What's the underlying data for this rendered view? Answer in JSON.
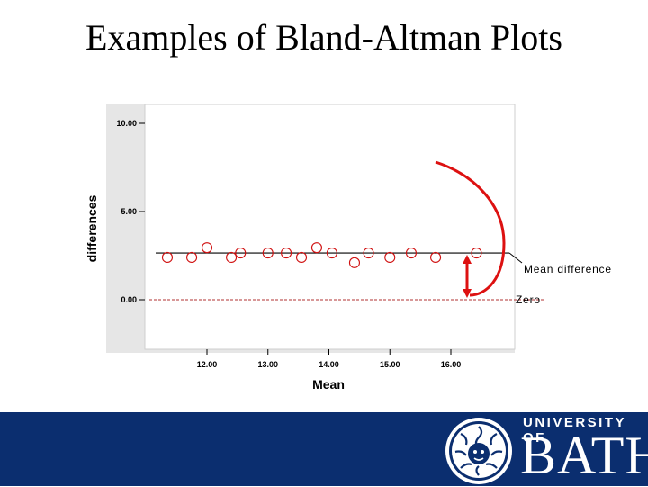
{
  "slide": {
    "title": "Examples of Bland-Altman Plots"
  },
  "chart_data": {
    "type": "scatter",
    "title": "",
    "xlabel": "Mean",
    "ylabel": "differences",
    "xlim": [
      11.2,
      17.0
    ],
    "ylim": [
      -3.0,
      10.5
    ],
    "x_ticks": [
      12.0,
      13.0,
      14.0,
      15.0,
      16.0
    ],
    "x_tick_labels": [
      "12.00",
      "13.00",
      "14.00",
      "15.00",
      "16.00"
    ],
    "y_ticks": [
      0.0,
      5.0,
      10.0
    ],
    "y_tick_labels": [
      "0.00",
      "5.00",
      "10.00"
    ],
    "grid": false,
    "points": [
      {
        "x": 11.35,
        "y": 2.4
      },
      {
        "x": 11.75,
        "y": 2.4
      },
      {
        "x": 12.0,
        "y": 2.95
      },
      {
        "x": 12.4,
        "y": 2.4
      },
      {
        "x": 12.55,
        "y": 2.65
      },
      {
        "x": 13.0,
        "y": 2.65
      },
      {
        "x": 13.3,
        "y": 2.65
      },
      {
        "x": 13.55,
        "y": 2.4
      },
      {
        "x": 13.8,
        "y": 2.95
      },
      {
        "x": 14.05,
        "y": 2.65
      },
      {
        "x": 14.42,
        "y": 2.1
      },
      {
        "x": 14.65,
        "y": 2.65
      },
      {
        "x": 15.0,
        "y": 2.4
      },
      {
        "x": 15.35,
        "y": 2.65
      },
      {
        "x": 15.75,
        "y": 2.4
      },
      {
        "x": 16.42,
        "y": 2.65
      }
    ],
    "mean_difference": 2.65,
    "zero_line": 0.0,
    "annotations": {
      "mean_label": "Mean difference",
      "zero_label": "Zero"
    },
    "colors": {
      "points": "#d01010",
      "arrow": "#dd1111",
      "mean_line": "#000000",
      "zero_line": "#b03030"
    }
  },
  "logo": {
    "university": "UNIVERSITY OF",
    "name": "BATH",
    "emblem_icon": "sun-face-emblem"
  },
  "colors": {
    "footer_band": "#0b2e6f"
  }
}
